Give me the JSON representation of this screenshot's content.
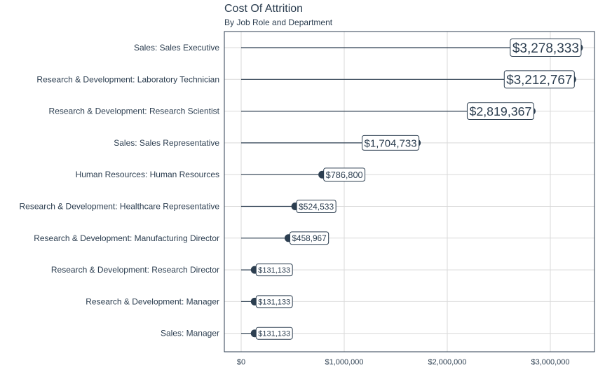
{
  "chart_data": {
    "type": "lollipop",
    "title": "Cost Of Attrition",
    "subtitle": "By Job Role and Department",
    "xlabel": "",
    "ylabel": "",
    "xlim": [
      0,
      3400000
    ],
    "x_ticks": [
      "$0",
      "$1,000,000",
      "$2,000,000",
      "$3,000,000"
    ],
    "x_tick_values": [
      0,
      1000000,
      2000000,
      3000000
    ],
    "grid": true,
    "legend": "none",
    "colors": {
      "line": "#2c3e50",
      "grid": "#d9d9d9",
      "label_bg": "#ffffff"
    },
    "categories": [
      "Sales: Sales Executive",
      "Research & Development: Laboratory Technician",
      "Research & Development: Research Scientist",
      "Sales: Sales Representative",
      "Human Resources: Human Resources",
      "Research & Development: Healthcare Representative",
      "Research & Development: Manufacturing Director",
      "Research & Development: Research Director",
      "Research & Development: Manager",
      "Sales: Manager"
    ],
    "values": [
      3278333,
      3212767,
      2819367,
      1704733,
      786800,
      524533,
      458967,
      131133,
      131133,
      131133
    ],
    "value_labels": [
      "$3,278,333",
      "$3,212,767",
      "$2,819,367",
      "$1,704,733",
      "$786,800",
      "$524,533",
      "$458,967",
      "$131,133",
      "$131,133",
      "$131,133"
    ]
  }
}
